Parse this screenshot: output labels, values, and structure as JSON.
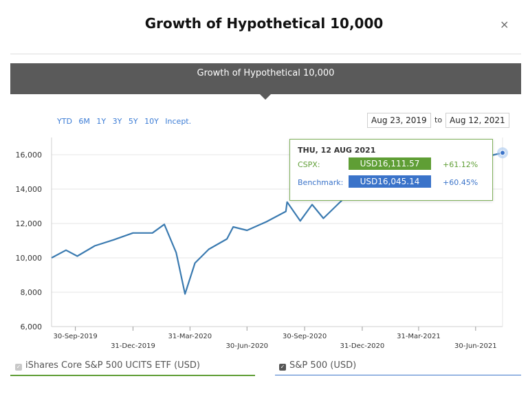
{
  "modal": {
    "title": "Growth of Hypothetical 10,000",
    "close_label": "×"
  },
  "banner": {
    "title": "Growth of Hypothetical 10,000"
  },
  "range_buttons": [
    "YTD",
    "6M",
    "1Y",
    "3Y",
    "5Y",
    "10Y",
    "Incept."
  ],
  "date_range": {
    "from": "Aug 23, 2019",
    "to_label": "to",
    "to": "Aug 12, 2021"
  },
  "tooltip": {
    "date": "THU, 12 AUG 2021",
    "rows": [
      {
        "label": "CSPX:",
        "value": "USD16,111.57",
        "change": "+61.12%",
        "color": "#5f9e35"
      },
      {
        "label": "Benchmark:",
        "value": "USD16,045.14",
        "change": "+60.45%",
        "color": "#3a73c9"
      }
    ]
  },
  "legend": [
    {
      "label": "iShares Core S&P 500 UCITS ETF (USD)",
      "color": "#5f9e35",
      "checked": false
    },
    {
      "label": "S&P 500 (USD)",
      "color": "#3a73c9",
      "checked": true
    }
  ],
  "colors": {
    "line": "#3a7ab0",
    "marker": "#3a73c9"
  },
  "chart_data": {
    "type": "line",
    "title": "",
    "xlabel": "",
    "ylabel": "",
    "ylim": [
      6000,
      17000
    ],
    "y_ticks": [
      6000,
      8000,
      10000,
      12000,
      14000,
      16000
    ],
    "y_tick_labels": [
      "6,000",
      "8,000",
      "10,000",
      "12,000",
      "14,000",
      "16,000"
    ],
    "x_ticks": [
      "2019-09-30",
      "2019-12-31",
      "2020-03-31",
      "2020-06-30",
      "2020-09-30",
      "2020-12-31",
      "2021-03-31",
      "2021-06-30"
    ],
    "x_tick_labels": [
      "30-Sep-2019",
      "31-Dec-2019",
      "31-Mar-2020",
      "30-Jun-2020",
      "30-Sep-2020",
      "31-Dec-2020",
      "31-Mar-2021",
      "30-Jun-2021"
    ],
    "x_range": [
      "2019-08-23",
      "2021-08-12"
    ],
    "grid": true,
    "series": [
      {
        "x": [
          "2019-08-23",
          "2019-09-15",
          "2019-10-03",
          "2019-10-31",
          "2019-11-30",
          "2019-12-31",
          "2020-01-31",
          "2020-02-19",
          "2020-03-09",
          "2020-03-23",
          "2020-04-08",
          "2020-04-30",
          "2020-05-29",
          "2020-06-08",
          "2020-06-30",
          "2020-07-31",
          "2020-08-31",
          "2020-09-02",
          "2020-09-23",
          "2020-10-12",
          "2020-10-30",
          "2020-11-30",
          "2020-12-31",
          "2021-01-29",
          "2021-02-12",
          "2021-03-04",
          "2021-03-31",
          "2021-04-30",
          "2021-05-28",
          "2021-06-30",
          "2021-07-30",
          "2021-08-12"
        ],
        "values": [
          10000,
          10450,
          10100,
          10700,
          11050,
          11450,
          11450,
          11950,
          10300,
          7900,
          9700,
          10500,
          11100,
          11800,
          11600,
          12100,
          12700,
          13250,
          12150,
          13100,
          12300,
          13400,
          14050,
          13900,
          14600,
          13850,
          14550,
          15300,
          15350,
          15750,
          16000,
          16111.57
        ]
      }
    ]
  }
}
